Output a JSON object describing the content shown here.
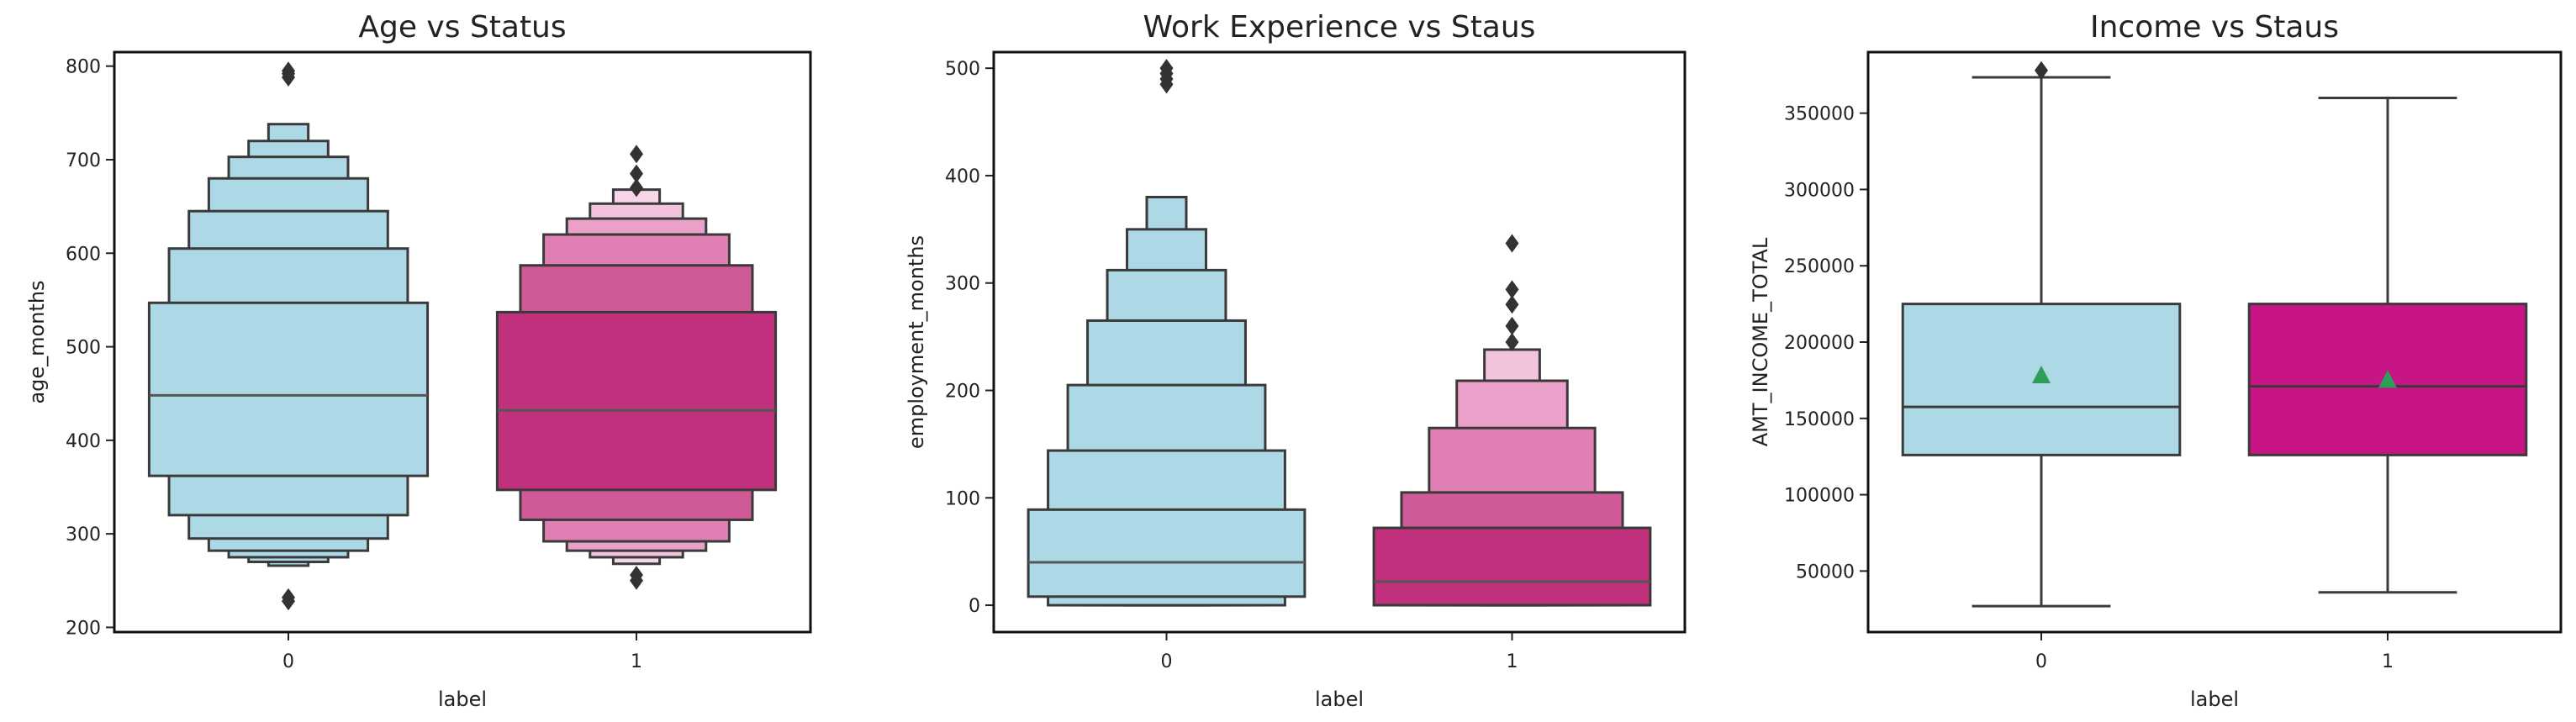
{
  "chart_data": [
    {
      "type": "boxen",
      "title": "Age vs Status",
      "xlabel": "label",
      "ylabel": "age_months",
      "categories": [
        "0",
        "1"
      ],
      "ylim": [
        195,
        815
      ],
      "yticks": [
        200,
        300,
        400,
        500,
        600,
        700,
        800
      ],
      "series": [
        {
          "category": "0",
          "color": "#add8e6",
          "median": 448,
          "boxes": [
            [
              362,
              547
            ],
            [
              320,
              605
            ],
            [
              295,
              645
            ],
            [
              282,
              680
            ],
            [
              275,
              703
            ],
            [
              270,
              720
            ],
            [
              266,
              738
            ]
          ],
          "outliers": [
            232,
            228,
            792,
            795,
            788
          ]
        },
        {
          "category": "1",
          "color": "#c71585",
          "box_colors": [
            "#c0307c",
            "#d05a98",
            "#e07fb3",
            "#eaa0c8",
            "#f2c3dc",
            "#f6d6e8"
          ],
          "median": 432,
          "boxes": [
            [
              347,
              537
            ],
            [
              315,
              587
            ],
            [
              292,
              620
            ],
            [
              282,
              637
            ],
            [
              275,
              653
            ],
            [
              268,
              668
            ]
          ],
          "outliers": [
            256,
            250,
            706,
            685,
            670
          ]
        }
      ]
    },
    {
      "type": "boxen",
      "title": "Work Experience vs Staus",
      "xlabel": "label",
      "ylabel": "employment_months",
      "categories": [
        "0",
        "1"
      ],
      "ylim": [
        -25,
        515
      ],
      "yticks": [
        0,
        100,
        200,
        300,
        400,
        500
      ],
      "series": [
        {
          "category": "0",
          "color": "#add8e6",
          "median": 40,
          "boxes": [
            [
              8,
              89
            ],
            [
              0,
              144
            ],
            [
              0,
              205
            ],
            [
              0,
              265
            ],
            [
              0,
              312
            ],
            [
              0,
              350
            ],
            [
              0,
              380
            ]
          ],
          "outliers": [
            485,
            490,
            495,
            500
          ]
        },
        {
          "category": "1",
          "color": "#c71585",
          "box_colors": [
            "#c0307c",
            "#d05a98",
            "#e07fb3",
            "#eaa0c8",
            "#f2c3dc"
          ],
          "median": 22,
          "boxes": [
            [
              0,
              72
            ],
            [
              0,
              105
            ],
            [
              0,
              165
            ],
            [
              0,
              209
            ],
            [
              0,
              238
            ]
          ],
          "outliers": [
            245,
            260,
            280,
            294,
            337
          ]
        }
      ]
    },
    {
      "type": "box",
      "title": "Income vs Staus",
      "xlabel": "label",
      "ylabel": "AMT_INCOME_TOTAL",
      "categories": [
        "0",
        "1"
      ],
      "ylim": [
        10000,
        390000
      ],
      "yticks": [
        50000,
        100000,
        150000,
        200000,
        250000,
        300000,
        350000
      ],
      "series": [
        {
          "category": "0",
          "color": "#add8e6",
          "whisker_low": 27000,
          "q1": 126000,
          "median": 157500,
          "q3": 225000,
          "whisker_high": 373500,
          "mean": 178000,
          "outliers": [
            378000
          ]
        },
        {
          "category": "1",
          "color": "#c71585",
          "whisker_low": 36000,
          "q1": 126000,
          "median": 171000,
          "q3": 225000,
          "whisker_high": 360000,
          "mean": 175000,
          "outliers": []
        }
      ]
    }
  ]
}
